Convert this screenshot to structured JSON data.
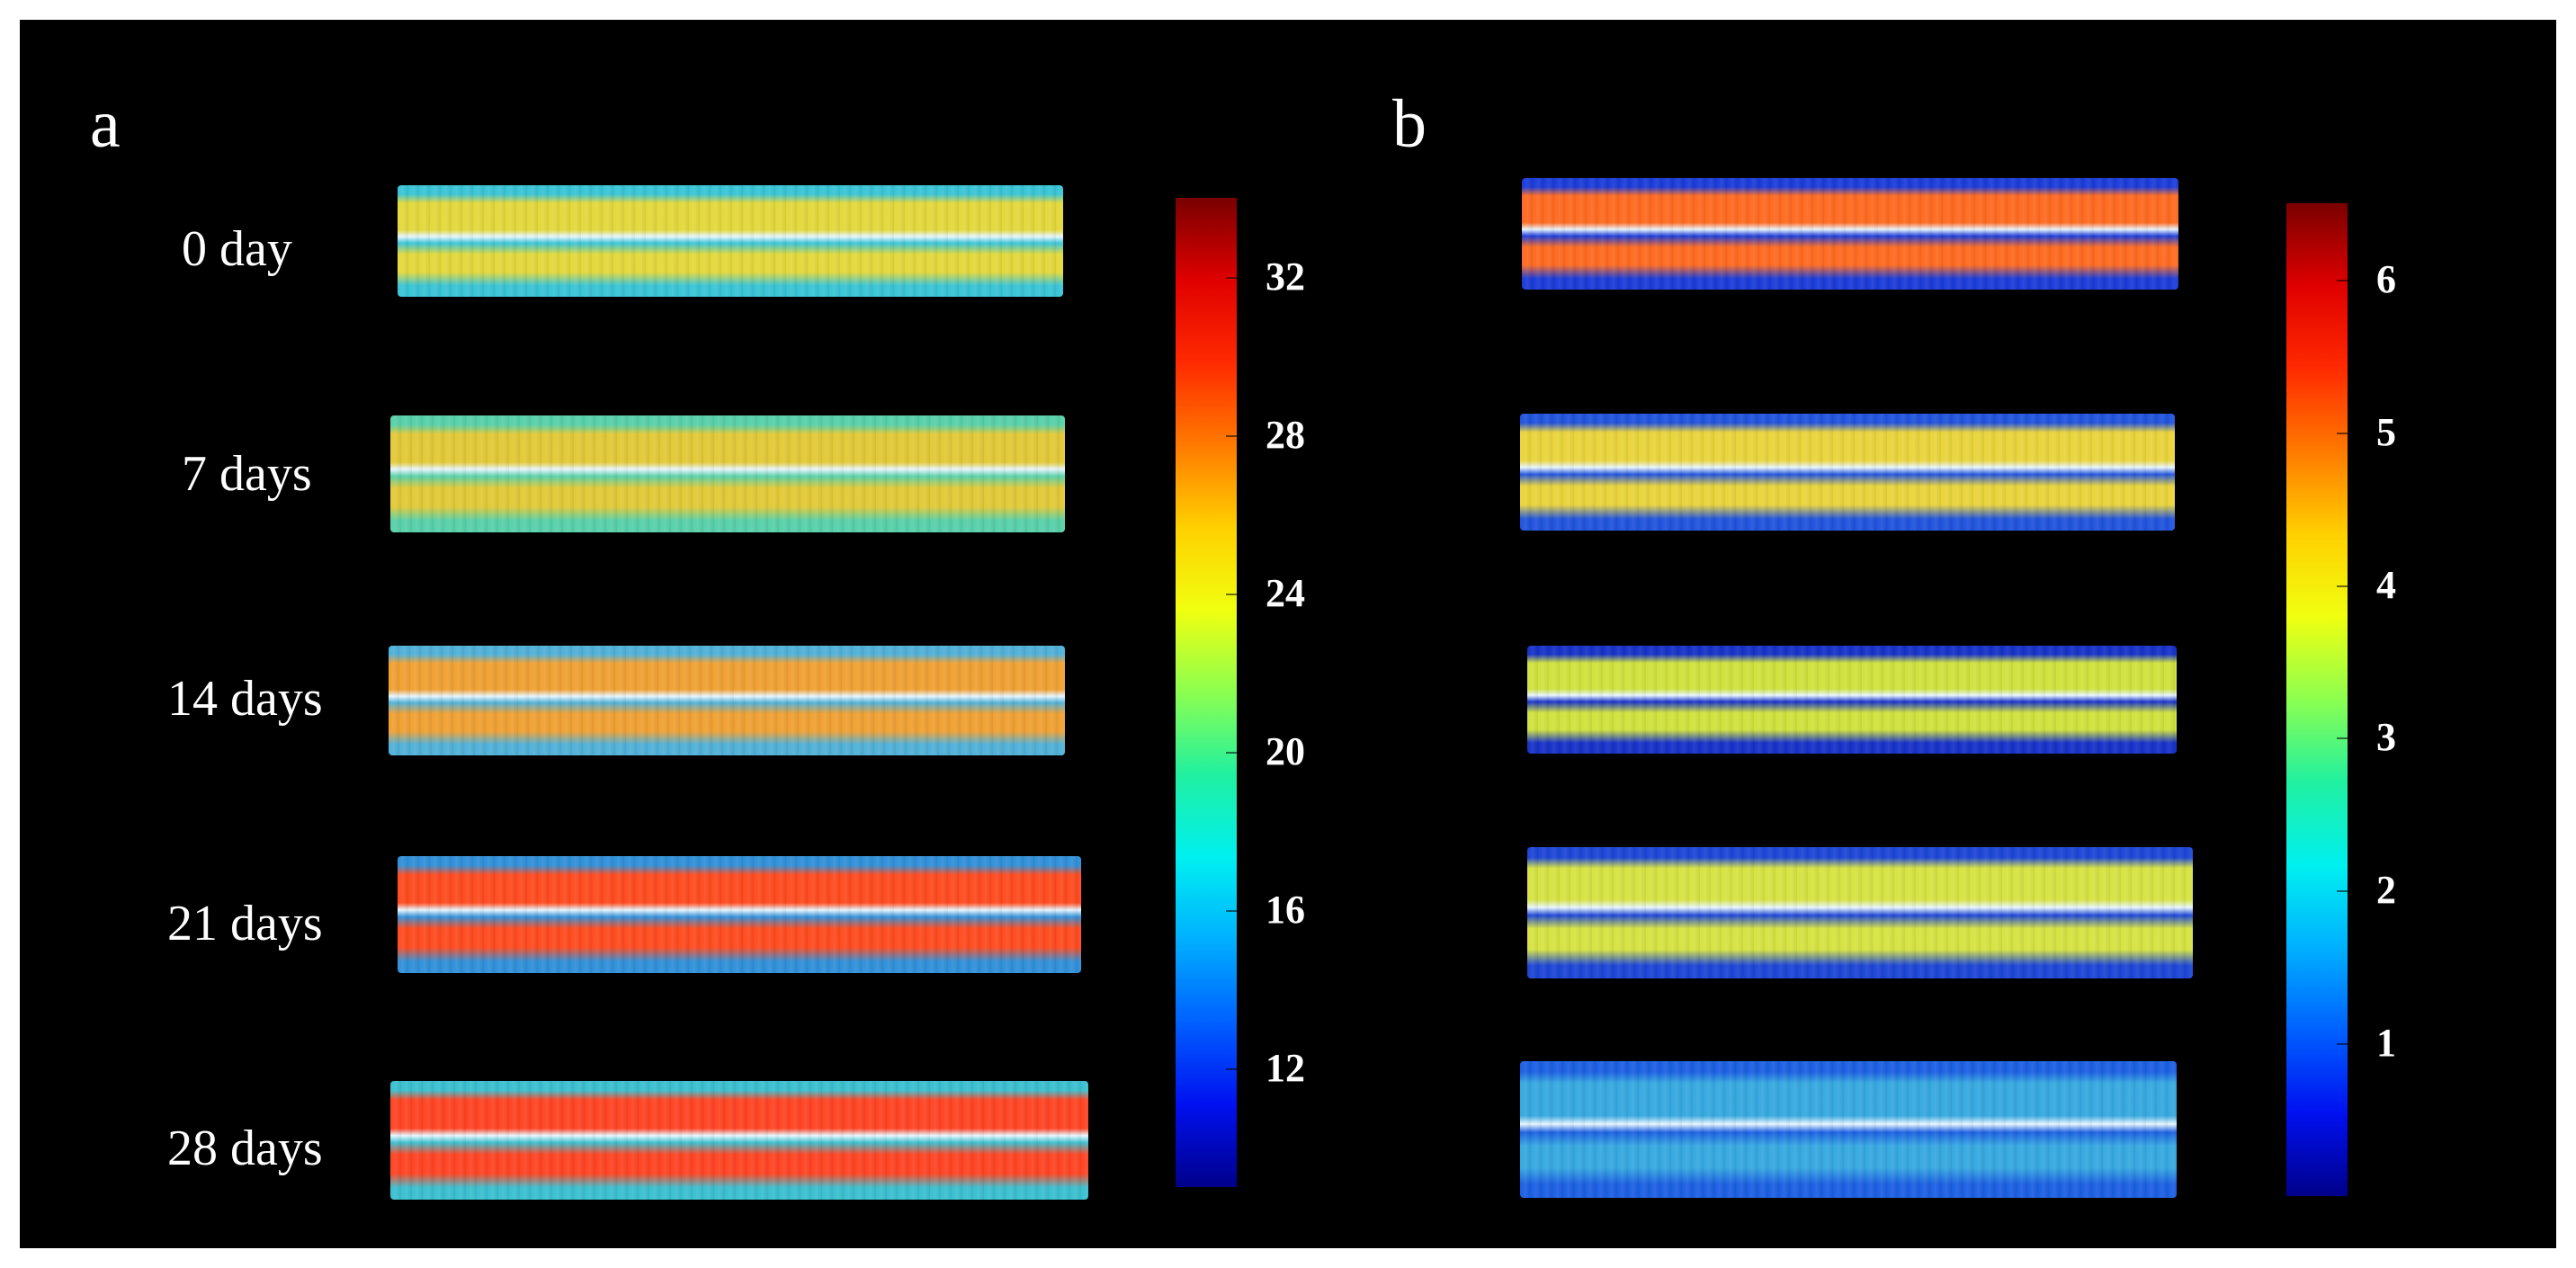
{
  "panels": [
    {
      "letter": "a",
      "rows": [
        "0 day",
        "7 days",
        "14 days",
        "21 days",
        "28 days"
      ],
      "colorbar": {
        "ticks": [
          "32",
          "28",
          "24",
          "20",
          "16",
          "12"
        ],
        "tick_values": [
          32,
          28,
          24,
          20,
          16,
          12
        ],
        "range": [
          9,
          34
        ]
      },
      "sample_core_colors": [
        "#e3d83a",
        "#e2c936",
        "#f0a032",
        "#ff4a1e",
        "#ff4322"
      ],
      "sample_base_colors": [
        "#37c4d6",
        "#56d0a8",
        "#4fb0d8",
        "#2f8fd8",
        "#39bfcf"
      ]
    },
    {
      "letter": "b",
      "colorbar": {
        "ticks": [
          "6",
          "5",
          "4",
          "3",
          "2",
          "1"
        ],
        "tick_values": [
          6,
          5,
          4,
          3,
          2,
          1
        ],
        "range": [
          0,
          6.5
        ]
      },
      "sample_core_colors": [
        "#ff6a1f",
        "#e9d43a",
        "#cfe23c",
        "#d6e341",
        "#35a8e0"
      ],
      "sample_base_colors": [
        "#1a3ad8",
        "#1f52dc",
        "#1530c8",
        "#1b44d6",
        "#1a5ee2"
      ]
    }
  ],
  "colorbar_gradient": [
    "#7a0000",
    "#e00000",
    "#ff2a00",
    "#ff7a00",
    "#ffd000",
    "#f0ff10",
    "#8cff50",
    "#20f0a0",
    "#00f0f0",
    "#00b0ff",
    "#0060ff",
    "#0010f0",
    "#00008a"
  ]
}
